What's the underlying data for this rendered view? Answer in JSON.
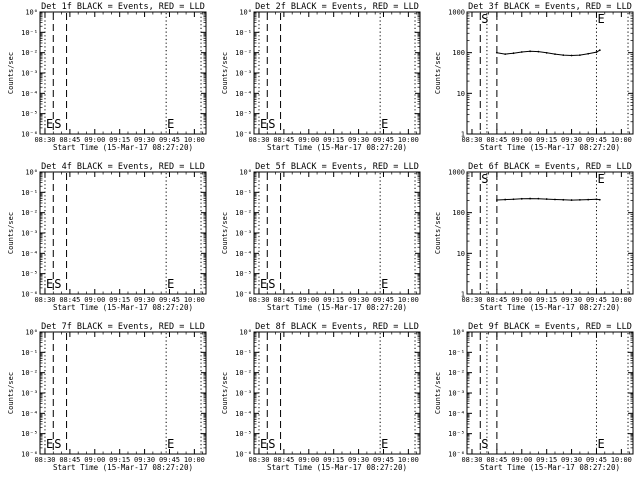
{
  "figure": {
    "start_time_label": "Start Time (15-Mar-17 08:27:20)",
    "ylabel": "Counts/sec",
    "x_tick_labels": [
      "08:30",
      "08:45",
      "09:00",
      "09:15",
      "09:30",
      "09:45",
      "10:00"
    ],
    "colors": {
      "axes": "#000000",
      "events": "#000000",
      "lld": "#ff0000",
      "background": "#ffffff"
    }
  },
  "chart_data": [
    {
      "type": "line",
      "title": "Det 1f BLACK = Events, RED = LLD",
      "xlabel": "Start Time (15-Mar-17 08:27:20)",
      "ylabel": "Counts/sec",
      "xlim": [
        "08:27",
        "10:07"
      ],
      "ylim": [
        1e-06,
        1.0
      ],
      "yscale": "log",
      "y_tick_labels": [
        "10⁰",
        "10⁻¹",
        "10⁻²",
        "10⁻³",
        "10⁻⁴",
        "10⁻⁵",
        "10⁻⁶"
      ],
      "markers": [
        {
          "label": "E",
          "time": "08:30",
          "style": "dotted"
        },
        {
          "label": "S",
          "time": "08:35",
          "style": "dashed"
        },
        {
          "label": "",
          "time": "08:43",
          "style": "dashed"
        },
        {
          "label": "E",
          "time": "09:43",
          "style": "dotted"
        },
        {
          "label": "",
          "time": "10:04",
          "style": "dotted"
        }
      ],
      "series": []
    },
    {
      "type": "line",
      "title": "Det 2f BLACK = Events, RED = LLD",
      "xlabel": "Start Time (15-Mar-17 08:27:20)",
      "ylabel": "Counts/sec",
      "xlim": [
        "08:27",
        "10:07"
      ],
      "ylim": [
        1e-06,
        1.0
      ],
      "yscale": "log",
      "y_tick_labels": [
        "10⁰",
        "10⁻¹",
        "10⁻²",
        "10⁻³",
        "10⁻⁴",
        "10⁻⁵",
        "10⁻⁶"
      ],
      "markers": [
        {
          "label": "E",
          "time": "08:30",
          "style": "dotted"
        },
        {
          "label": "S",
          "time": "08:35",
          "style": "dashed"
        },
        {
          "label": "",
          "time": "08:43",
          "style": "dashed"
        },
        {
          "label": "E",
          "time": "09:43",
          "style": "dotted"
        },
        {
          "label": "",
          "time": "10:04",
          "style": "dotted"
        }
      ],
      "series": []
    },
    {
      "type": "line",
      "title": "Det 3f BLACK = Events, RED = LLD",
      "xlabel": "Start Time (15-Mar-17 08:27:20)",
      "ylabel": "Counts/sec",
      "xlim": [
        "08:27",
        "10:07"
      ],
      "ylim": [
        1,
        1000
      ],
      "yscale": "log",
      "y_tick_labels": [
        "1",
        "10",
        "100",
        "1000"
      ],
      "markers": [
        {
          "label": "S",
          "time": "08:35",
          "style": "dashed"
        },
        {
          "label": "",
          "time": "08:39",
          "style": "dotted"
        },
        {
          "label": "",
          "time": "08:45",
          "style": "dashed"
        },
        {
          "label": "E",
          "time": "09:45",
          "style": "dotted"
        },
        {
          "label": "",
          "time": "10:04",
          "style": "dotted"
        }
      ],
      "series": [
        {
          "color": "#000000",
          "x": [
            "08:45",
            "08:50",
            "08:55",
            "09:00",
            "09:05",
            "09:10",
            "09:15",
            "09:20",
            "09:25",
            "09:30",
            "09:35",
            "09:40",
            "09:45",
            "09:47"
          ],
          "y": [
            100,
            92,
            97,
            104,
            108,
            106,
            99,
            92,
            87,
            85,
            87,
            94,
            103,
            115
          ]
        }
      ]
    },
    {
      "type": "line",
      "title": "Det 4f BLACK = Events, RED = LLD",
      "xlabel": "Start Time (15-Mar-17 08:27:20)",
      "ylabel": "Counts/sec",
      "xlim": [
        "08:27",
        "10:07"
      ],
      "ylim": [
        1e-06,
        1.0
      ],
      "yscale": "log",
      "y_tick_labels": [
        "10⁰",
        "10⁻¹",
        "10⁻²",
        "10⁻³",
        "10⁻⁴",
        "10⁻⁵",
        "10⁻⁶"
      ],
      "markers": [
        {
          "label": "E",
          "time": "08:30",
          "style": "dotted"
        },
        {
          "label": "S",
          "time": "08:35",
          "style": "dashed"
        },
        {
          "label": "",
          "time": "08:43",
          "style": "dashed"
        },
        {
          "label": "E",
          "time": "09:43",
          "style": "dotted"
        },
        {
          "label": "",
          "time": "10:04",
          "style": "dotted"
        }
      ],
      "series": []
    },
    {
      "type": "line",
      "title": "Det 5f BLACK = Events, RED = LLD",
      "xlabel": "Start Time (15-Mar-17 08:27:20)",
      "ylabel": "Counts/sec",
      "xlim": [
        "08:27",
        "10:07"
      ],
      "ylim": [
        1e-06,
        1.0
      ],
      "yscale": "log",
      "y_tick_labels": [
        "10⁰",
        "10⁻¹",
        "10⁻²",
        "10⁻³",
        "10⁻⁴",
        "10⁻⁵",
        "10⁻⁶"
      ],
      "markers": [
        {
          "label": "E",
          "time": "08:30",
          "style": "dotted"
        },
        {
          "label": "S",
          "time": "08:35",
          "style": "dashed"
        },
        {
          "label": "",
          "time": "08:43",
          "style": "dashed"
        },
        {
          "label": "E",
          "time": "09:43",
          "style": "dotted"
        },
        {
          "label": "",
          "time": "10:04",
          "style": "dotted"
        }
      ],
      "series": []
    },
    {
      "type": "line",
      "title": "Det 6f BLACK = Events, RED = LLD",
      "xlabel": "Start Time (15-Mar-17 08:27:20)",
      "ylabel": "Counts/sec",
      "xlim": [
        "08:27",
        "10:07"
      ],
      "ylim": [
        1,
        1000
      ],
      "yscale": "log",
      "y_tick_labels": [
        "1",
        "10",
        "100",
        "1000"
      ],
      "markers": [
        {
          "label": "S",
          "time": "08:35",
          "style": "dashed"
        },
        {
          "label": "",
          "time": "08:39",
          "style": "dotted"
        },
        {
          "label": "",
          "time": "08:45",
          "style": "dashed"
        },
        {
          "label": "E",
          "time": "09:45",
          "style": "dotted"
        },
        {
          "label": "",
          "time": "10:04",
          "style": "dotted"
        }
      ],
      "series": [
        {
          "color": "#000000",
          "x": [
            "08:45",
            "08:50",
            "08:55",
            "09:00",
            "09:05",
            "09:10",
            "09:15",
            "09:20",
            "09:25",
            "09:30",
            "09:35",
            "09:40",
            "09:45",
            "09:47"
          ],
          "y": [
            205,
            210,
            214,
            219,
            222,
            221,
            216,
            211,
            207,
            204,
            206,
            209,
            214,
            208
          ]
        }
      ]
    },
    {
      "type": "line",
      "title": "Det 7f BLACK = Events, RED = LLD",
      "xlabel": "Start Time (15-Mar-17 08:27:20)",
      "ylabel": "Counts/sec",
      "xlim": [
        "08:27",
        "10:07"
      ],
      "ylim": [
        1e-06,
        1.0
      ],
      "yscale": "log",
      "y_tick_labels": [
        "10⁰",
        "10⁻¹",
        "10⁻²",
        "10⁻³",
        "10⁻⁴",
        "10⁻⁵",
        "10⁻⁶"
      ],
      "markers": [
        {
          "label": "E",
          "time": "08:30",
          "style": "dotted"
        },
        {
          "label": "S",
          "time": "08:35",
          "style": "dashed"
        },
        {
          "label": "",
          "time": "08:43",
          "style": "dashed"
        },
        {
          "label": "E",
          "time": "09:43",
          "style": "dotted"
        },
        {
          "label": "",
          "time": "10:04",
          "style": "dotted"
        }
      ],
      "series": []
    },
    {
      "type": "line",
      "title": "Det 8f BLACK = Events, RED = LLD",
      "xlabel": "Start Time (15-Mar-17 08:27:20)",
      "ylabel": "Counts/sec",
      "xlim": [
        "08:27",
        "10:07"
      ],
      "ylim": [
        1e-06,
        1.0
      ],
      "yscale": "log",
      "y_tick_labels": [
        "10⁰",
        "10⁻¹",
        "10⁻²",
        "10⁻³",
        "10⁻⁴",
        "10⁻⁵",
        "10⁻⁶"
      ],
      "markers": [
        {
          "label": "E",
          "time": "08:30",
          "style": "dotted"
        },
        {
          "label": "S",
          "time": "08:35",
          "style": "dashed"
        },
        {
          "label": "",
          "time": "08:43",
          "style": "dashed"
        },
        {
          "label": "E",
          "time": "09:43",
          "style": "dotted"
        },
        {
          "label": "",
          "time": "10:04",
          "style": "dotted"
        }
      ],
      "series": []
    },
    {
      "type": "line",
      "title": "Det 9f BLACK = Events, RED = LLD",
      "xlabel": "Start Time (15-Mar-17 08:27:20)",
      "ylabel": "Counts/sec",
      "xlim": [
        "08:27",
        "10:07"
      ],
      "ylim": [
        1e-06,
        1.0
      ],
      "yscale": "log",
      "y_tick_labels": [
        "10⁰",
        "10⁻¹",
        "10⁻²",
        "10⁻³",
        "10⁻⁴",
        "10⁻⁵",
        "10⁻⁶"
      ],
      "markers": [
        {
          "label": "S",
          "time": "08:35",
          "style": "dashed"
        },
        {
          "label": "",
          "time": "08:39",
          "style": "dotted"
        },
        {
          "label": "",
          "time": "08:45",
          "style": "dashed"
        },
        {
          "label": "E",
          "time": "09:45",
          "style": "dotted"
        },
        {
          "label": "",
          "time": "10:04",
          "style": "dotted"
        }
      ],
      "series": []
    }
  ]
}
